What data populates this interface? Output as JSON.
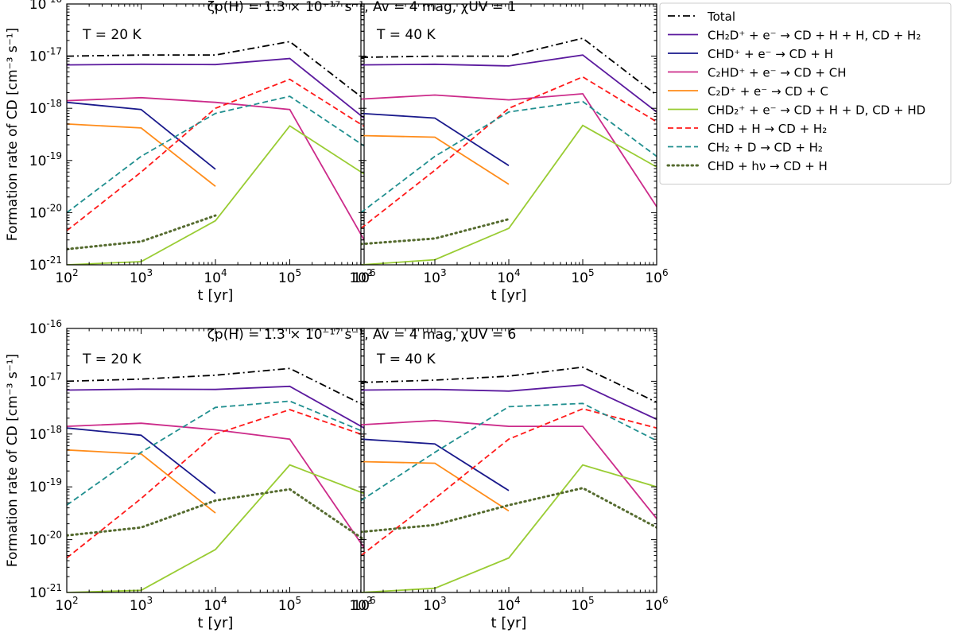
{
  "figure": {
    "ylabel": "Formation rate of CD [cm⁻³ s⁻¹]",
    "xlabel": "t [yr]"
  },
  "legend": {
    "location": "upper-right-outside",
    "entries": [
      {
        "key": "total",
        "label": "Total",
        "color": "#000000",
        "style": "dashdot",
        "width": 1.8
      },
      {
        "key": "ch2d",
        "label": "CH₂D⁺ + e⁻ → CD + H + H,  CD + H₂",
        "color": "#5b1a9e",
        "style": "solid",
        "width": 1.8
      },
      {
        "key": "chd",
        "label": "CHD⁺ + e⁻ → CD + H",
        "color": "#1a1a8c",
        "style": "solid",
        "width": 1.8
      },
      {
        "key": "c2hd",
        "label": "C₂HD⁺ + e⁻ → CD + CH",
        "color": "#cc2b8a",
        "style": "solid",
        "width": 1.8
      },
      {
        "key": "c2d",
        "label": "C₂D⁺ + e⁻ → CD + C",
        "color": "#ff8c1a",
        "style": "solid",
        "width": 1.8
      },
      {
        "key": "chd2",
        "label": "CHD₂⁺ + e⁻ → CD + H + D,  CD + HD",
        "color": "#99cc33",
        "style": "solid",
        "width": 1.8
      },
      {
        "key": "chdh",
        "label": "CHD + H → CD + H₂",
        "color": "#ff1a1a",
        "style": "dashed",
        "width": 1.8
      },
      {
        "key": "ch2dd",
        "label": "CH₂ + D → CD + H₂",
        "color": "#208f8f",
        "style": "dashed",
        "width": 1.8
      },
      {
        "key": "chdhv",
        "label": "CHD + hν → CD + H",
        "color": "#556b2f",
        "style": "dotted",
        "width": 3.0
      }
    ]
  },
  "chart_data": [
    {
      "type": "line",
      "title": "ζp(H) = 1.3 × 10⁻¹⁷ s⁻¹,  Av = 4 mag,  χUV = 1",
      "annotation": "T = 20 K",
      "xscale": "log",
      "yscale": "log",
      "xlim": [
        100,
        1000000
      ],
      "ylim": [
        1e-21,
        1e-16
      ],
      "xlabel": "t [yr]",
      "ylabel": "Formation rate of CD [cm⁻³ s⁻¹]",
      "series": [
        {
          "key": "total",
          "x": [
            100,
            1000,
            10000,
            100000,
            1000000
          ],
          "values": [
            1e-17,
            1.05e-17,
            1.05e-17,
            1.9e-17,
            1.5e-18
          ]
        },
        {
          "key": "ch2d",
          "x": [
            100,
            1000,
            10000,
            100000,
            1000000
          ],
          "values": [
            6.8e-18,
            7e-18,
            6.9e-18,
            9e-18,
            6.5e-19
          ]
        },
        {
          "key": "chd",
          "x": [
            100,
            1000,
            10000
          ],
          "values": [
            1.3e-18,
            9.5e-19,
            6.8e-20
          ]
        },
        {
          "key": "c2hd",
          "x": [
            100,
            1000,
            10000,
            100000,
            1000000
          ],
          "values": [
            1.4e-18,
            1.6e-18,
            1.3e-18,
            9.5e-19,
            3e-21
          ]
        },
        {
          "key": "c2d",
          "x": [
            100,
            1000,
            10000
          ],
          "values": [
            5e-19,
            4.2e-19,
            3.2e-20
          ]
        },
        {
          "key": "chd2",
          "x": [
            100,
            1000,
            10000,
            100000,
            1000000
          ],
          "values": [
            1e-21,
            1.15e-21,
            7e-21,
            4.6e-19,
            5.5e-20
          ]
        },
        {
          "key": "chdh",
          "x": [
            100,
            1000,
            10000,
            100000,
            1000000
          ],
          "values": [
            4.5e-21,
            6e-20,
            1e-18,
            3.6e-18,
            4.5e-19
          ]
        },
        {
          "key": "ch2dd",
          "x": [
            100,
            1000,
            10000,
            100000,
            1000000
          ],
          "values": [
            1e-20,
            1.2e-19,
            8e-19,
            1.7e-18,
            1.9e-19
          ]
        },
        {
          "key": "chdhv",
          "x": [
            100,
            1000,
            10000
          ],
          "values": [
            2e-21,
            2.8e-21,
            8.8e-21
          ]
        }
      ]
    },
    {
      "type": "line",
      "title": "",
      "annotation": "T = 40 K",
      "xscale": "log",
      "yscale": "log",
      "xlim": [
        100,
        1000000
      ],
      "ylim": [
        1e-21,
        1e-16
      ],
      "xlabel": "t [yr]",
      "ylabel": "",
      "series": [
        {
          "key": "total",
          "x": [
            100,
            1000,
            10000,
            100000,
            1000000
          ],
          "values": [
            9.5e-18,
            1e-17,
            1e-17,
            2.2e-17,
            1.8e-18
          ]
        },
        {
          "key": "ch2d",
          "x": [
            100,
            1000,
            10000,
            100000,
            1000000
          ],
          "values": [
            6.8e-18,
            7e-18,
            6.5e-18,
            1.05e-17,
            8.5e-19
          ]
        },
        {
          "key": "chd",
          "x": [
            100,
            1000,
            10000
          ],
          "values": [
            8e-19,
            6.5e-19,
            8e-20
          ]
        },
        {
          "key": "c2hd",
          "x": [
            100,
            1000,
            10000,
            100000,
            1000000
          ],
          "values": [
            1.5e-18,
            1.8e-18,
            1.45e-18,
            1.9e-18,
            1.3e-20
          ]
        },
        {
          "key": "c2d",
          "x": [
            100,
            1000,
            10000
          ],
          "values": [
            3e-19,
            2.8e-19,
            3.5e-20
          ]
        },
        {
          "key": "chd2",
          "x": [
            100,
            1000,
            10000,
            100000,
            1000000
          ],
          "values": [
            1e-21,
            1.25e-21,
            5e-21,
            4.7e-19,
            7.5e-20
          ]
        },
        {
          "key": "chdh",
          "x": [
            100,
            1000,
            10000,
            100000,
            1000000
          ],
          "values": [
            5e-21,
            6.5e-20,
            1e-18,
            4e-18,
            5.5e-19
          ]
        },
        {
          "key": "ch2dd",
          "x": [
            100,
            1000,
            10000,
            100000,
            1000000
          ],
          "values": [
            1e-20,
            1.2e-19,
            8.5e-19,
            1.35e-18,
            1.2e-19
          ]
        },
        {
          "key": "chdhv",
          "x": [
            100,
            1000,
            10000
          ],
          "values": [
            2.5e-21,
            3.2e-21,
            7.5e-21
          ]
        }
      ]
    },
    {
      "type": "line",
      "title": "ζp(H) = 1.3 × 10⁻¹⁷ s⁻¹,  Av = 4 mag,  χUV = 6",
      "annotation": "T = 20 K",
      "xscale": "log",
      "yscale": "log",
      "xlim": [
        100,
        1000000
      ],
      "ylim": [
        1e-21,
        1e-16
      ],
      "xlabel": "t [yr]",
      "ylabel": "Formation rate of CD [cm⁻³ s⁻¹]",
      "series": [
        {
          "key": "total",
          "x": [
            100,
            1000,
            10000,
            100000,
            1000000
          ],
          "values": [
            1e-17,
            1.1e-17,
            1.3e-17,
            1.75e-17,
            3.5e-18
          ]
        },
        {
          "key": "ch2d",
          "x": [
            100,
            1000,
            10000,
            100000,
            1000000
          ],
          "values": [
            6.8e-18,
            7.1e-18,
            7e-18,
            8e-18,
            1.3e-18
          ]
        },
        {
          "key": "chd",
          "x": [
            100,
            1000,
            10000
          ],
          "values": [
            1.3e-18,
            9.5e-19,
            7.5e-20
          ]
        },
        {
          "key": "c2hd",
          "x": [
            100,
            1000,
            10000,
            100000,
            1000000
          ],
          "values": [
            1.4e-18,
            1.6e-18,
            1.2e-18,
            8e-19,
            7e-21
          ]
        },
        {
          "key": "c2d",
          "x": [
            100,
            1000,
            10000
          ],
          "values": [
            5e-19,
            4.2e-19,
            3.2e-20
          ]
        },
        {
          "key": "chd2",
          "x": [
            100,
            1000,
            10000,
            100000,
            1000000
          ],
          "values": [
            1e-21,
            1.1e-21,
            6.5e-21,
            2.6e-19,
            7.5e-20
          ]
        },
        {
          "key": "chdh",
          "x": [
            100,
            1000,
            10000,
            100000,
            1000000
          ],
          "values": [
            4.5e-21,
            6e-20,
            1e-18,
            2.9e-18,
            9.5e-19
          ]
        },
        {
          "key": "ch2dd",
          "x": [
            100,
            1000,
            10000,
            100000,
            1000000
          ],
          "values": [
            4.5e-20,
            4.5e-19,
            3.2e-18,
            4.2e-18,
            1.1e-18
          ]
        },
        {
          "key": "chdhv",
          "x": [
            100,
            1000,
            10000,
            100000,
            1000000
          ],
          "values": [
            1.2e-20,
            1.7e-20,
            5.5e-20,
            9e-20,
            1e-20
          ]
        }
      ]
    },
    {
      "type": "line",
      "title": "",
      "annotation": "T = 40 K",
      "xscale": "log",
      "yscale": "log",
      "xlim": [
        100,
        1000000
      ],
      "ylim": [
        1e-21,
        1e-16
      ],
      "xlabel": "t [yr]",
      "ylabel": "",
      "series": [
        {
          "key": "total",
          "x": [
            100,
            1000,
            10000,
            100000,
            1000000
          ],
          "values": [
            9.5e-18,
            1.05e-17,
            1.25e-17,
            1.85e-17,
            4e-18
          ]
        },
        {
          "key": "ch2d",
          "x": [
            100,
            1000,
            10000,
            100000,
            1000000
          ],
          "values": [
            6.8e-18,
            7e-18,
            6.5e-18,
            8.5e-18,
            1.9e-18
          ]
        },
        {
          "key": "chd",
          "x": [
            100,
            1000,
            10000
          ],
          "values": [
            8e-19,
            6.5e-19,
            8.5e-20
          ]
        },
        {
          "key": "c2hd",
          "x": [
            100,
            1000,
            10000,
            100000,
            1000000
          ],
          "values": [
            1.5e-18,
            1.8e-18,
            1.4e-18,
            1.4e-18,
            2.5e-20
          ]
        },
        {
          "key": "c2d",
          "x": [
            100,
            1000,
            10000
          ],
          "values": [
            3e-19,
            2.8e-19,
            3.5e-20
          ]
        },
        {
          "key": "chd2",
          "x": [
            100,
            1000,
            10000,
            100000,
            1000000
          ],
          "values": [
            1e-21,
            1.2e-21,
            4.5e-21,
            2.6e-19,
            1e-19
          ]
        },
        {
          "key": "chdh",
          "x": [
            100,
            1000,
            10000,
            100000,
            1000000
          ],
          "values": [
            5e-21,
            6e-20,
            8e-19,
            3e-18,
            1.3e-18
          ]
        },
        {
          "key": "ch2dd",
          "x": [
            100,
            1000,
            10000,
            100000,
            1000000
          ],
          "values": [
            5.5e-20,
            4.5e-19,
            3.3e-18,
            3.8e-18,
            7.5e-19
          ]
        },
        {
          "key": "chdhv",
          "x": [
            100,
            1000,
            10000,
            100000,
            1000000
          ],
          "values": [
            1.4e-20,
            1.9e-20,
            4.5e-20,
            9.5e-20,
            1.7e-20
          ]
        }
      ]
    }
  ]
}
